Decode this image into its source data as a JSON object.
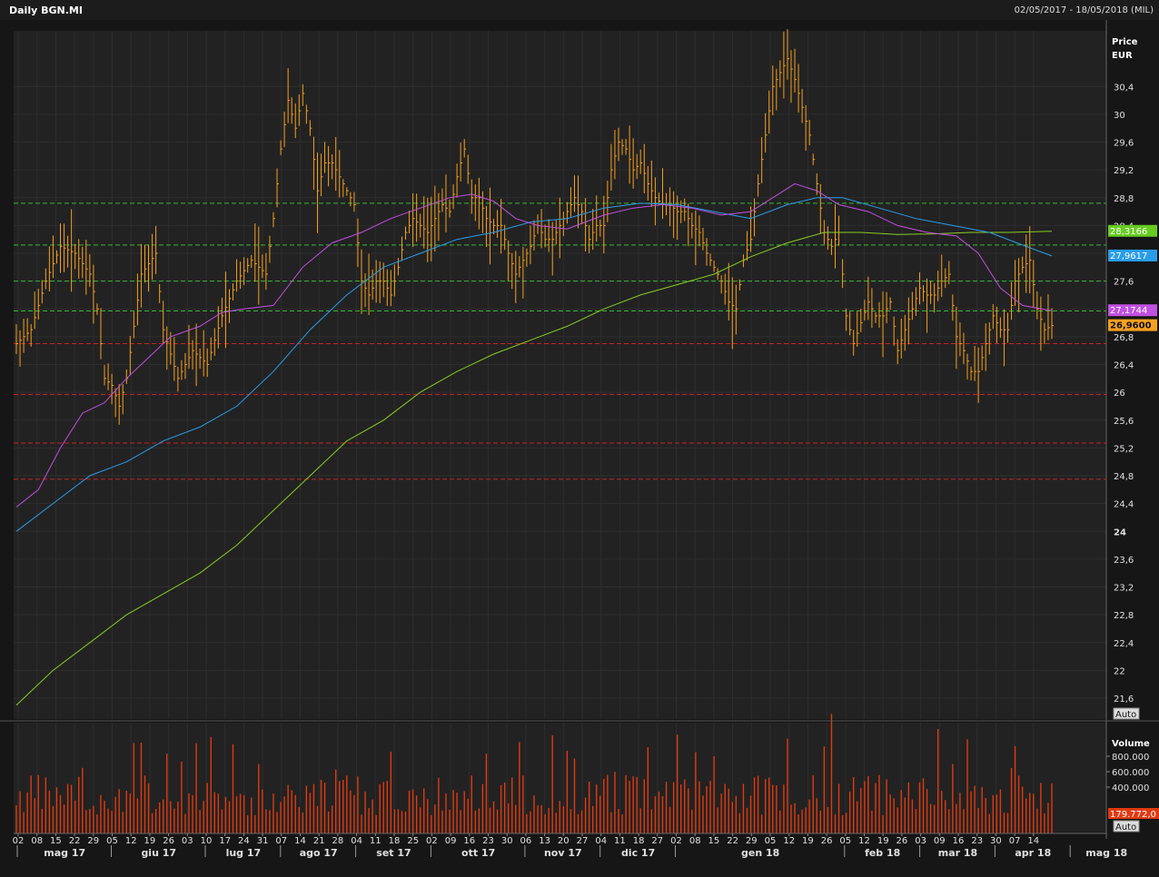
{
  "header": {
    "title": "Daily BGN.MI",
    "date_range": "02/05/2017 - 18/05/2018 (MIL)"
  },
  "price_axis": {
    "label_line1": "Price",
    "label_line2": "EUR",
    "ticks": [
      "30,4",
      "30",
      "29,6",
      "29,2",
      "28,8",
      "28,4",
      "28",
      "27,6",
      "27,2",
      "26,8",
      "26,4",
      "26",
      "25,6",
      "25,2",
      "24,8",
      "24,4",
      "24",
      "23,6",
      "23,2",
      "22,8",
      "22,4",
      "22",
      "21,6"
    ],
    "auto_label": "Auto"
  },
  "volume_axis": {
    "label": "Volume",
    "ticks": [
      "800.000",
      "600.000",
      "400.000"
    ],
    "last_value_label": "179.772,0",
    "auto_label": "Auto"
  },
  "x_axis": {
    "day_ticks": [
      "02",
      "08",
      "15",
      "22",
      "29",
      "05",
      "12",
      "19",
      "26",
      "03",
      "10",
      "17",
      "24",
      "31",
      "07",
      "14",
      "21",
      "28",
      "04",
      "11",
      "18",
      "25",
      "02",
      "09",
      "16",
      "23",
      "30",
      "06",
      "13",
      "20",
      "27",
      "04",
      "11",
      "18",
      "27",
      "02",
      "08",
      "15",
      "22",
      "29",
      "05",
      "12",
      "19",
      "26",
      "05",
      "12",
      "19",
      "26",
      "03",
      "09",
      "16",
      "23",
      "30",
      "07",
      "14"
    ],
    "month_labels": [
      "mag 17",
      "giu 17",
      "lug 17",
      "ago 17",
      "set 17",
      "ott 17",
      "nov 17",
      "dic 17",
      "gen 18",
      "feb 18",
      "mar 18",
      "apr 18",
      "mag 18"
    ]
  },
  "value_tags": [
    {
      "text": "28,3166",
      "color": "#66cc22"
    },
    {
      "text": "27,9617",
      "color": "#2a9de8"
    },
    {
      "text": "27,1744",
      "color": "#c050e0"
    },
    {
      "text": "26,9600",
      "color": "#f5a020"
    }
  ],
  "colors": {
    "price_bars": "#f5a020",
    "volume_bars": "#e03a10",
    "ma_green": "#88cc22",
    "ma_blue": "#2a9de8",
    "ma_magenta": "#c050e0",
    "support_green": "#33bb33",
    "resistance_red": "#cc2222"
  },
  "chart_data": {
    "type": "line",
    "symbol": "BGN.MI",
    "currency": "EUR",
    "y_range": [
      21.3,
      31.2
    ],
    "horizontal_lines_green": [
      28.72,
      28.12,
      27.6,
      27.17
    ],
    "horizontal_lines_red": [
      26.7,
      25.97,
      25.27,
      24.75
    ],
    "close_path": [
      {
        "x": 0,
        "y": 26.7
      },
      {
        "x": 4,
        "y": 26.9
      },
      {
        "x": 8,
        "y": 27.6
      },
      {
        "x": 12,
        "y": 28.1
      },
      {
        "x": 16,
        "y": 28.0
      },
      {
        "x": 20,
        "y": 27.7
      },
      {
        "x": 22,
        "y": 27.2
      },
      {
        "x": 24,
        "y": 26.2
      },
      {
        "x": 26,
        "y": 26.1
      },
      {
        "x": 28,
        "y": 25.8
      },
      {
        "x": 30,
        "y": 26.2
      },
      {
        "x": 34,
        "y": 27.7
      },
      {
        "x": 38,
        "y": 28.0
      },
      {
        "x": 40,
        "y": 26.9
      },
      {
        "x": 44,
        "y": 26.2
      },
      {
        "x": 48,
        "y": 26.6
      },
      {
        "x": 52,
        "y": 26.4
      },
      {
        "x": 56,
        "y": 27.1
      },
      {
        "x": 60,
        "y": 27.6
      },
      {
        "x": 64,
        "y": 27.9
      },
      {
        "x": 68,
        "y": 27.7
      },
      {
        "x": 70,
        "y": 28.5
      },
      {
        "x": 72,
        "y": 29.5
      },
      {
        "x": 74,
        "y": 30.2
      },
      {
        "x": 76,
        "y": 29.8
      },
      {
        "x": 78,
        "y": 30.3
      },
      {
        "x": 80,
        "y": 29.8
      },
      {
        "x": 82,
        "y": 28.9
      },
      {
        "x": 84,
        "y": 29.3
      },
      {
        "x": 86,
        "y": 29.3
      },
      {
        "x": 88,
        "y": 29.1
      },
      {
        "x": 90,
        "y": 28.9
      },
      {
        "x": 92,
        "y": 28.7
      },
      {
        "x": 94,
        "y": 27.6
      },
      {
        "x": 96,
        "y": 27.4
      },
      {
        "x": 98,
        "y": 27.6
      },
      {
        "x": 100,
        "y": 27.6
      },
      {
        "x": 102,
        "y": 27.4
      },
      {
        "x": 104,
        "y": 27.8
      },
      {
        "x": 106,
        "y": 28.3
      },
      {
        "x": 108,
        "y": 28.5
      },
      {
        "x": 110,
        "y": 28.4
      },
      {
        "x": 112,
        "y": 28.3
      },
      {
        "x": 114,
        "y": 28.5
      },
      {
        "x": 116,
        "y": 28.7
      },
      {
        "x": 118,
        "y": 28.6
      },
      {
        "x": 120,
        "y": 29.1
      },
      {
        "x": 122,
        "y": 29.5
      },
      {
        "x": 124,
        "y": 28.8
      },
      {
        "x": 126,
        "y": 28.8
      },
      {
        "x": 128,
        "y": 28.5
      },
      {
        "x": 130,
        "y": 28.4
      },
      {
        "x": 132,
        "y": 28.4
      },
      {
        "x": 134,
        "y": 28.0
      },
      {
        "x": 136,
        "y": 27.7
      },
      {
        "x": 138,
        "y": 27.9
      },
      {
        "x": 140,
        "y": 28.1
      },
      {
        "x": 142,
        "y": 28.4
      },
      {
        "x": 144,
        "y": 28.2
      },
      {
        "x": 146,
        "y": 28.2
      },
      {
        "x": 148,
        "y": 28.4
      },
      {
        "x": 150,
        "y": 28.6
      },
      {
        "x": 152,
        "y": 28.8
      },
      {
        "x": 154,
        "y": 28.6
      },
      {
        "x": 156,
        "y": 28.2
      },
      {
        "x": 158,
        "y": 28.4
      },
      {
        "x": 160,
        "y": 28.4
      },
      {
        "x": 162,
        "y": 29.2
      },
      {
        "x": 164,
        "y": 29.6
      },
      {
        "x": 166,
        "y": 29.5
      },
      {
        "x": 168,
        "y": 29.2
      },
      {
        "x": 170,
        "y": 29.3
      },
      {
        "x": 172,
        "y": 29.0
      },
      {
        "x": 174,
        "y": 28.8
      },
      {
        "x": 176,
        "y": 28.7
      },
      {
        "x": 178,
        "y": 28.7
      },
      {
        "x": 180,
        "y": 28.6
      },
      {
        "x": 182,
        "y": 28.6
      },
      {
        "x": 184,
        "y": 28.4
      },
      {
        "x": 186,
        "y": 28.3
      },
      {
        "x": 188,
        "y": 28.0
      },
      {
        "x": 190,
        "y": 27.8
      },
      {
        "x": 192,
        "y": 27.6
      },
      {
        "x": 194,
        "y": 27.3
      },
      {
        "x": 196,
        "y": 27.2
      },
      {
        "x": 198,
        "y": 27.9
      },
      {
        "x": 200,
        "y": 28.2
      },
      {
        "x": 202,
        "y": 29.0
      },
      {
        "x": 204,
        "y": 29.7
      },
      {
        "x": 206,
        "y": 30.4
      },
      {
        "x": 208,
        "y": 30.6
      },
      {
        "x": 210,
        "y": 30.8
      },
      {
        "x": 212,
        "y": 30.5
      },
      {
        "x": 214,
        "y": 30.1
      },
      {
        "x": 216,
        "y": 29.7
      },
      {
        "x": 218,
        "y": 29.0
      },
      {
        "x": 220,
        "y": 28.3
      },
      {
        "x": 222,
        "y": 28.1
      },
      {
        "x": 224,
        "y": 28.3
      },
      {
        "x": 226,
        "y": 27.1
      },
      {
        "x": 228,
        "y": 26.7
      },
      {
        "x": 230,
        "y": 27.0
      },
      {
        "x": 232,
        "y": 27.3
      },
      {
        "x": 234,
        "y": 27.1
      },
      {
        "x": 236,
        "y": 27.1
      },
      {
        "x": 238,
        "y": 27.3
      },
      {
        "x": 240,
        "y": 26.6
      },
      {
        "x": 242,
        "y": 26.9
      },
      {
        "x": 244,
        "y": 27.2
      },
      {
        "x": 246,
        "y": 27.5
      },
      {
        "x": 248,
        "y": 27.4
      },
      {
        "x": 250,
        "y": 27.4
      },
      {
        "x": 252,
        "y": 27.6
      },
      {
        "x": 254,
        "y": 27.7
      },
      {
        "x": 256,
        "y": 26.8
      },
      {
        "x": 258,
        "y": 26.6
      },
      {
        "x": 260,
        "y": 26.3
      },
      {
        "x": 262,
        "y": 26.3
      },
      {
        "x": 264,
        "y": 26.7
      },
      {
        "x": 266,
        "y": 27.1
      },
      {
        "x": 268,
        "y": 26.9
      },
      {
        "x": 270,
        "y": 26.9
      },
      {
        "x": 272,
        "y": 27.6
      },
      {
        "x": 274,
        "y": 27.8
      },
      {
        "x": 276,
        "y": 27.9
      },
      {
        "x": 278,
        "y": 27.2
      },
      {
        "x": 280,
        "y": 26.9
      },
      {
        "x": 282,
        "y": 26.96
      }
    ],
    "ma_green": [
      {
        "x": 0,
        "y": 21.5
      },
      {
        "x": 10,
        "y": 22.0
      },
      {
        "x": 20,
        "y": 22.4
      },
      {
        "x": 30,
        "y": 22.8
      },
      {
        "x": 40,
        "y": 23.1
      },
      {
        "x": 50,
        "y": 23.4
      },
      {
        "x": 60,
        "y": 23.8
      },
      {
        "x": 70,
        "y": 24.3
      },
      {
        "x": 80,
        "y": 24.8
      },
      {
        "x": 90,
        "y": 25.3
      },
      {
        "x": 100,
        "y": 25.6
      },
      {
        "x": 110,
        "y": 26.0
      },
      {
        "x": 120,
        "y": 26.3
      },
      {
        "x": 130,
        "y": 26.55
      },
      {
        "x": 140,
        "y": 26.75
      },
      {
        "x": 150,
        "y": 26.95
      },
      {
        "x": 160,
        "y": 27.2
      },
      {
        "x": 170,
        "y": 27.4
      },
      {
        "x": 180,
        "y": 27.55
      },
      {
        "x": 190,
        "y": 27.7
      },
      {
        "x": 200,
        "y": 27.95
      },
      {
        "x": 210,
        "y": 28.15
      },
      {
        "x": 220,
        "y": 28.3
      },
      {
        "x": 230,
        "y": 28.3
      },
      {
        "x": 240,
        "y": 28.27
      },
      {
        "x": 250,
        "y": 28.28
      },
      {
        "x": 260,
        "y": 28.3
      },
      {
        "x": 270,
        "y": 28.3
      },
      {
        "x": 282,
        "y": 28.3166
      }
    ],
    "ma_blue": [
      {
        "x": 0,
        "y": 24.0
      },
      {
        "x": 10,
        "y": 24.4
      },
      {
        "x": 20,
        "y": 24.8
      },
      {
        "x": 30,
        "y": 25.0
      },
      {
        "x": 40,
        "y": 25.3
      },
      {
        "x": 50,
        "y": 25.5
      },
      {
        "x": 60,
        "y": 25.8
      },
      {
        "x": 70,
        "y": 26.3
      },
      {
        "x": 80,
        "y": 26.9
      },
      {
        "x": 90,
        "y": 27.4
      },
      {
        "x": 100,
        "y": 27.8
      },
      {
        "x": 110,
        "y": 28.0
      },
      {
        "x": 120,
        "y": 28.2
      },
      {
        "x": 130,
        "y": 28.3
      },
      {
        "x": 140,
        "y": 28.45
      },
      {
        "x": 150,
        "y": 28.5
      },
      {
        "x": 160,
        "y": 28.65
      },
      {
        "x": 170,
        "y": 28.72
      },
      {
        "x": 180,
        "y": 28.7
      },
      {
        "x": 190,
        "y": 28.6
      },
      {
        "x": 200,
        "y": 28.5
      },
      {
        "x": 210,
        "y": 28.7
      },
      {
        "x": 218,
        "y": 28.8
      },
      {
        "x": 225,
        "y": 28.8
      },
      {
        "x": 235,
        "y": 28.65
      },
      {
        "x": 245,
        "y": 28.5
      },
      {
        "x": 255,
        "y": 28.4
      },
      {
        "x": 265,
        "y": 28.3
      },
      {
        "x": 275,
        "y": 28.1
      },
      {
        "x": 282,
        "y": 27.9617
      }
    ],
    "ma_magenta": [
      {
        "x": 0,
        "y": 24.35
      },
      {
        "x": 6,
        "y": 24.6
      },
      {
        "x": 12,
        "y": 25.2
      },
      {
        "x": 18,
        "y": 25.7
      },
      {
        "x": 24,
        "y": 25.85
      },
      {
        "x": 30,
        "y": 26.2
      },
      {
        "x": 36,
        "y": 26.5
      },
      {
        "x": 42,
        "y": 26.8
      },
      {
        "x": 50,
        "y": 26.95
      },
      {
        "x": 56,
        "y": 27.15
      },
      {
        "x": 62,
        "y": 27.2
      },
      {
        "x": 70,
        "y": 27.25
      },
      {
        "x": 78,
        "y": 27.8
      },
      {
        "x": 86,
        "y": 28.15
      },
      {
        "x": 94,
        "y": 28.3
      },
      {
        "x": 102,
        "y": 28.5
      },
      {
        "x": 110,
        "y": 28.65
      },
      {
        "x": 118,
        "y": 28.8
      },
      {
        "x": 124,
        "y": 28.85
      },
      {
        "x": 130,
        "y": 28.75
      },
      {
        "x": 136,
        "y": 28.5
      },
      {
        "x": 142,
        "y": 28.4
      },
      {
        "x": 150,
        "y": 28.35
      },
      {
        "x": 160,
        "y": 28.55
      },
      {
        "x": 168,
        "y": 28.65
      },
      {
        "x": 176,
        "y": 28.7
      },
      {
        "x": 184,
        "y": 28.65
      },
      {
        "x": 192,
        "y": 28.55
      },
      {
        "x": 200,
        "y": 28.6
      },
      {
        "x": 206,
        "y": 28.8
      },
      {
        "x": 212,
        "y": 29.0
      },
      {
        "x": 218,
        "y": 28.9
      },
      {
        "x": 224,
        "y": 28.7
      },
      {
        "x": 232,
        "y": 28.6
      },
      {
        "x": 240,
        "y": 28.4
      },
      {
        "x": 248,
        "y": 28.3
      },
      {
        "x": 256,
        "y": 28.25
      },
      {
        "x": 262,
        "y": 28.0
      },
      {
        "x": 268,
        "y": 27.5
      },
      {
        "x": 274,
        "y": 27.25
      },
      {
        "x": 282,
        "y": 27.1744
      }
    ]
  }
}
